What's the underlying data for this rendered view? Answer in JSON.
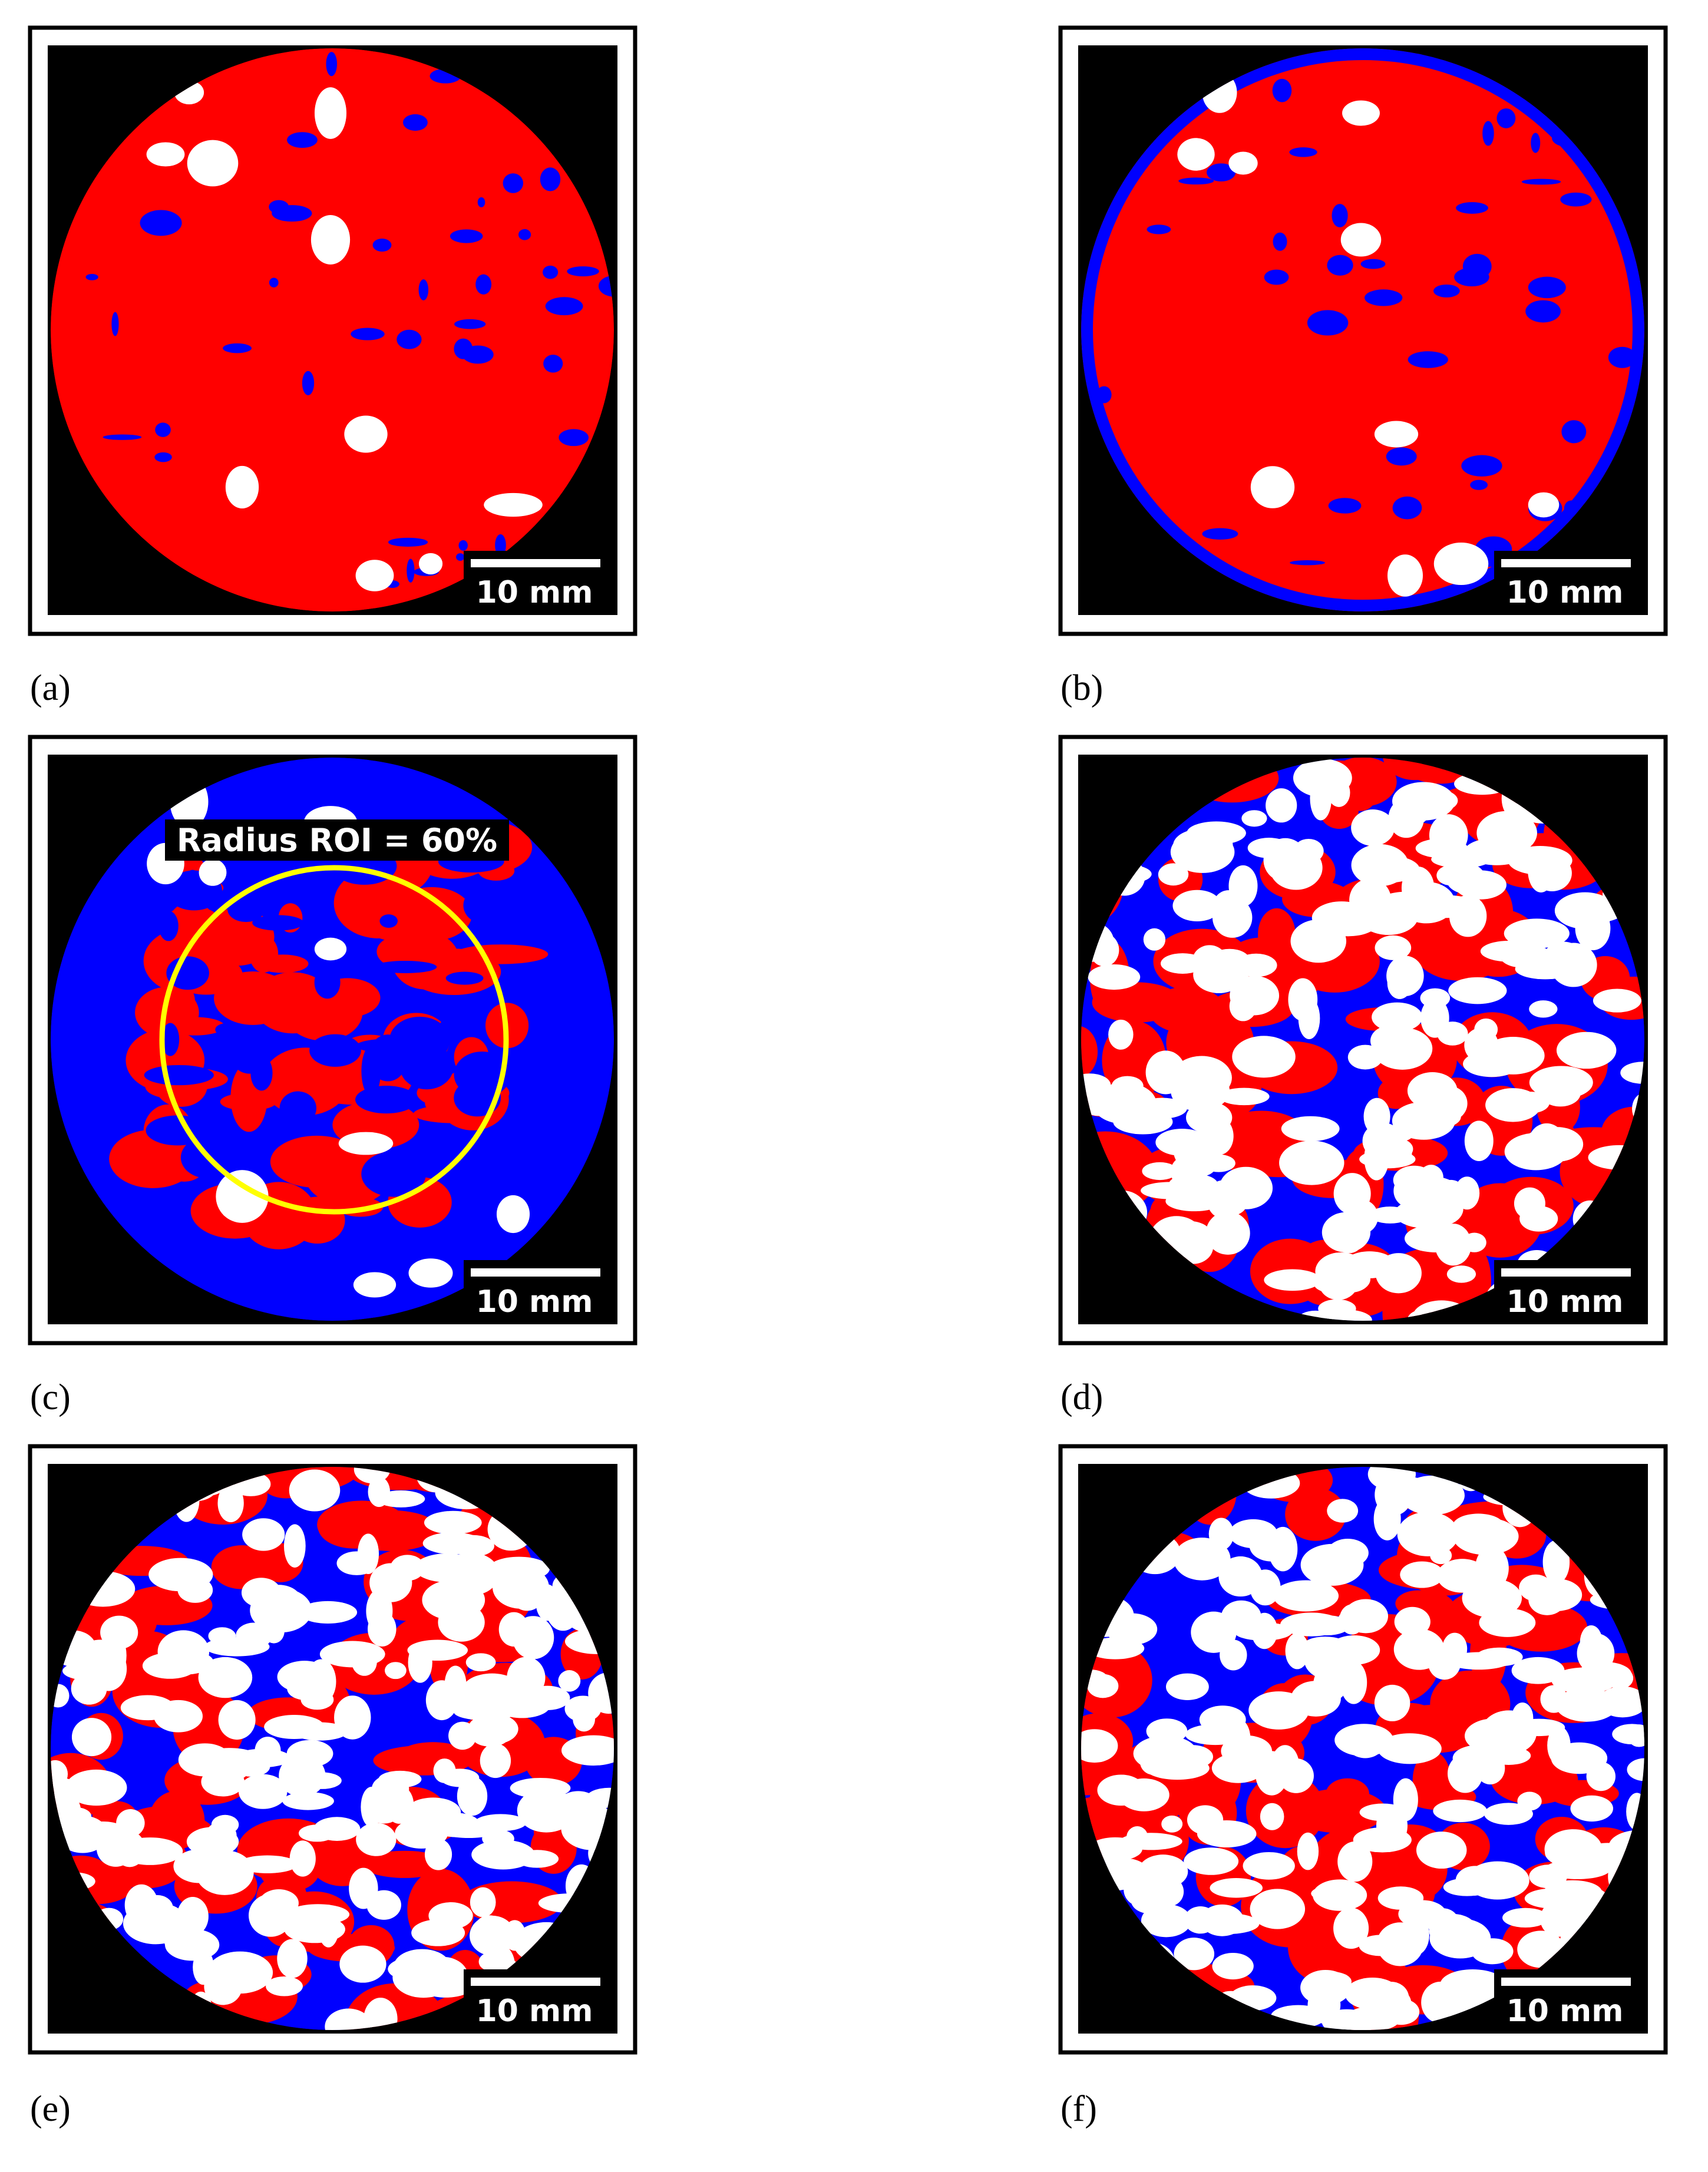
{
  "panels": [
    {
      "label": "(a)",
      "scale_bar": "10 mm"
    },
    {
      "label": "(b)",
      "scale_bar": "10 mm"
    },
    {
      "label": "(c)",
      "scale_bar": "10 mm",
      "annotation": "Radius ROI = 60%"
    },
    {
      "label": "(d)",
      "scale_bar": "10 mm"
    },
    {
      "label": "(e)",
      "scale_bar": "10 mm"
    },
    {
      "label": "(f)",
      "scale_bar": "10 mm"
    }
  ]
}
